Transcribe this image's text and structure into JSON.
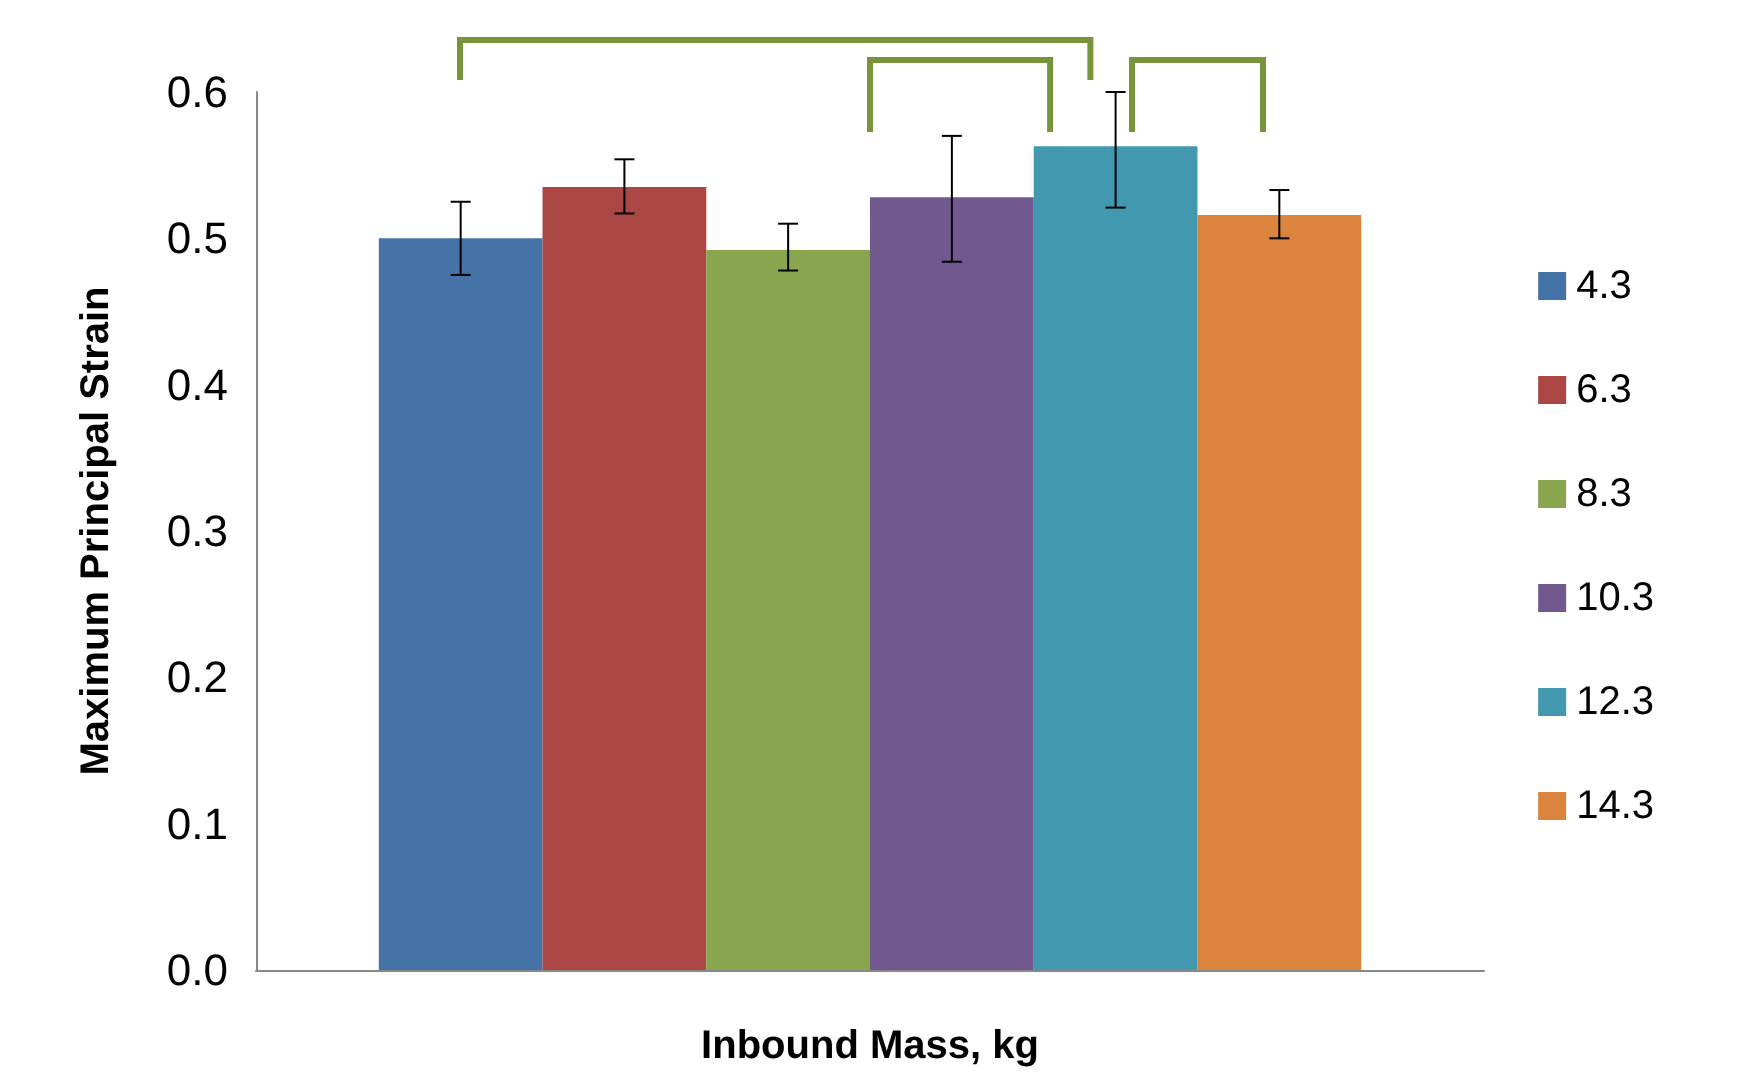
{
  "chart_data": {
    "type": "bar",
    "xlabel": "Inbound Mass, kg",
    "ylabel": "Maximum Principal Strain",
    "categories": [
      null
    ],
    "series": [
      {
        "name": "4.3",
        "color": "#4572a7",
        "values": [
          0.5
        ],
        "errors": [
          [
            0.475,
            0.525
          ]
        ]
      },
      {
        "name": "6.3",
        "color": "#aa4643",
        "values": [
          0.535
        ],
        "errors": [
          [
            0.517,
            0.554
          ]
        ]
      },
      {
        "name": "8.3",
        "color": "#89a54e",
        "values": [
          0.492
        ],
        "errors": [
          [
            0.478,
            0.51
          ]
        ]
      },
      {
        "name": "10.3",
        "color": "#71588f",
        "values": [
          0.528
        ],
        "errors": [
          [
            0.484,
            0.57
          ]
        ]
      },
      {
        "name": "12.3",
        "color": "#4198af",
        "values": [
          0.563
        ],
        "errors": [
          [
            0.521,
            0.6
          ]
        ]
      },
      {
        "name": "14.3",
        "color": "#db843d",
        "values": [
          0.516
        ],
        "errors": [
          [
            0.5,
            0.533
          ]
        ]
      }
    ],
    "ylim": [
      0,
      0.6
    ],
    "yticks": [
      {
        "value": 0,
        "label": "0.0"
      },
      {
        "value": 0.1,
        "label": "0.1"
      },
      {
        "value": 0.2,
        "label": "0.2"
      },
      {
        "value": 0.3,
        "label": "0.3"
      },
      {
        "value": 0.4,
        "label": "0.4"
      },
      {
        "value": 0.5,
        "label": "0.5"
      },
      {
        "value": 0.6,
        "label": "0.6"
      }
    ],
    "grid": false,
    "legend": "right"
  }
}
